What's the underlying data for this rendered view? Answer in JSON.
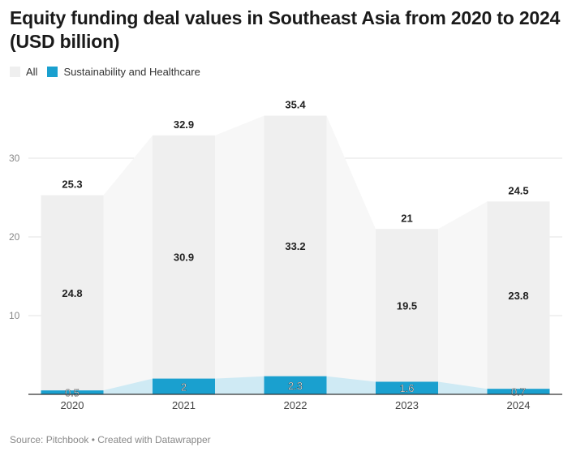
{
  "title": "Equity funding deal values in Southeast Asia from 2020 to 2024 (USD billion)",
  "source": "Source: Pitchbook • Created with Datawrapper",
  "colors": {
    "all": "#efefef",
    "sustainability": "#1aa0cf",
    "area_all": "#f7f7f7",
    "area_sust": "#cfeaf4"
  },
  "chart_data": {
    "type": "bar",
    "title": "Equity funding deal values in Southeast Asia from 2020 to 2024 (USD billion)",
    "categories": [
      "2020",
      "2021",
      "2022",
      "2023",
      "2024"
    ],
    "series": [
      {
        "name": "All",
        "totals": [
          25.3,
          32.9,
          35.4,
          21,
          24.5
        ],
        "segment_labels": [
          "24.8",
          "30.9",
          "33.2",
          "19.5",
          "23.8"
        ]
      },
      {
        "name": "Sustainability and Healthcare",
        "values": [
          0.5,
          2,
          2.3,
          1.6,
          0.7
        ]
      }
    ],
    "total_labels": [
      "25.3",
      "32.9",
      "35.4",
      "21",
      "24.5"
    ],
    "sust_labels": [
      "0.5",
      "2",
      "2.3",
      "1.6",
      "0.7"
    ],
    "ylim": [
      0,
      37
    ],
    "yticks": [
      10,
      20,
      30
    ],
    "grid": true,
    "legend": "top-left"
  }
}
